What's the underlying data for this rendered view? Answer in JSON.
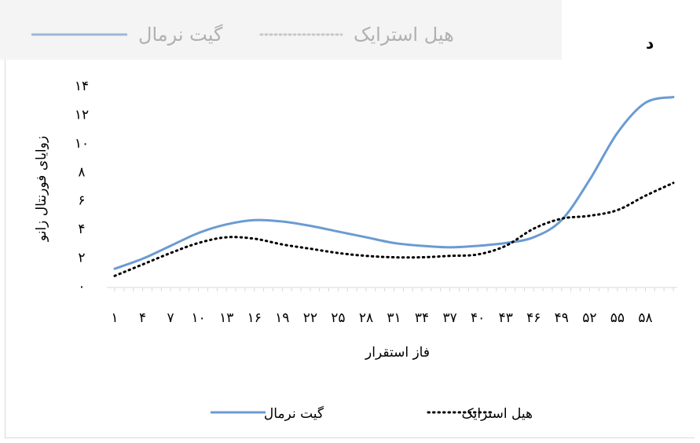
{
  "panel_letter": "د",
  "chart_data": {
    "type": "line",
    "title": "",
    "xlabel": "فاز استقرار",
    "ylabel": "زوایای فورنتال زانو",
    "x_tick_labels": [
      "۱",
      "۴",
      "۷",
      "۱۰",
      "۱۳",
      "۱۶",
      "۱۹",
      "۲۲",
      "۲۵",
      "۲۸",
      "۳۱",
      "۳۴",
      "۳۷",
      "۴۰",
      "۴۳",
      "۴۶",
      "۴۹",
      "۵۲",
      "۵۵",
      "۵۸"
    ],
    "y_tick_labels": [
      "۰",
      "۲",
      "۴",
      "۶",
      "۸",
      "۱۰",
      "۱۲",
      "۱۴"
    ],
    "ylim": [
      0,
      14
    ],
    "xlim": [
      1,
      61
    ],
    "grid": false,
    "legend_position": "bottom",
    "series": [
      {
        "name": "گیت نرمال",
        "color": "#6a9bd2",
        "dash": "solid",
        "x": [
          1,
          4,
          7,
          10,
          13,
          16,
          19,
          22,
          25,
          28,
          31,
          34,
          37,
          40,
          43,
          46,
          49,
          52,
          55,
          58,
          61
        ],
        "y": [
          1.2,
          1.9,
          2.8,
          3.7,
          4.3,
          4.6,
          4.5,
          4.2,
          3.8,
          3.4,
          3.0,
          2.8,
          2.7,
          2.8,
          3.0,
          3.4,
          4.6,
          7.4,
          10.7,
          12.8,
          13.2
        ]
      },
      {
        "name": "هیل استرایک",
        "color": "#000000",
        "dash": "dotted",
        "x": [
          1,
          4,
          7,
          10,
          13,
          16,
          19,
          22,
          25,
          28,
          31,
          34,
          37,
          40,
          43,
          46,
          49,
          52,
          55,
          58,
          61
        ],
        "y": [
          0.7,
          1.5,
          2.3,
          3.0,
          3.4,
          3.3,
          2.9,
          2.6,
          2.3,
          2.1,
          2.0,
          2.0,
          2.1,
          2.2,
          2.8,
          4.0,
          4.7,
          4.9,
          5.3,
          6.3,
          7.2
        ]
      }
    ]
  }
}
